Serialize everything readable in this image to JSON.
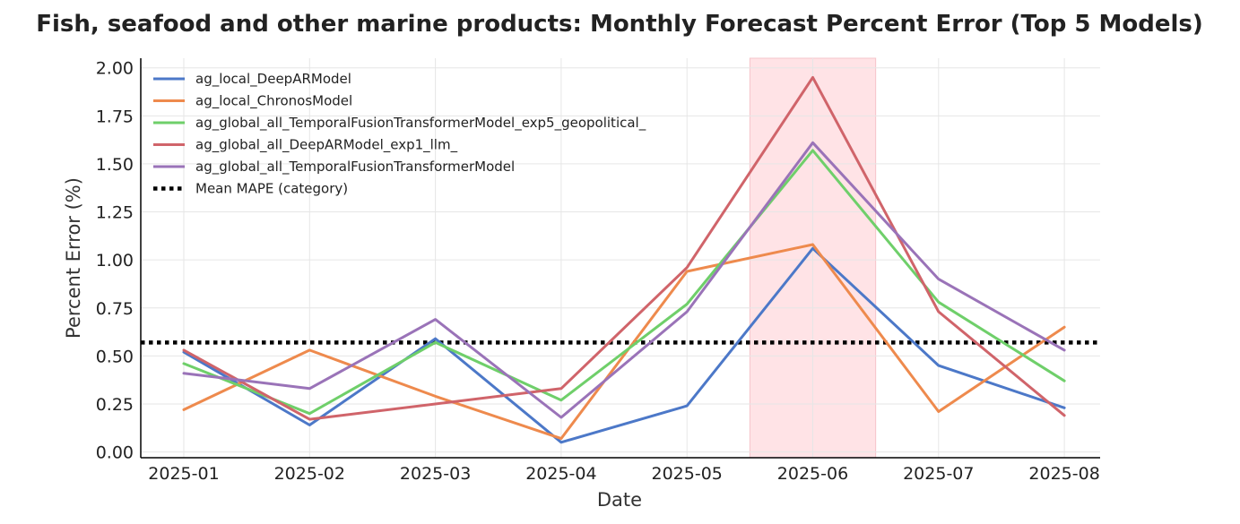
{
  "chart_data": {
    "type": "line",
    "title": "Fish, seafood and other marine products: Monthly Forecast Percent Error (Top 5 Models)",
    "xlabel": "Date",
    "ylabel": "Percent Error (%)",
    "categories": [
      "2025-01",
      "2025-02",
      "2025-03",
      "2025-04",
      "2025-05",
      "2025-06",
      "2025-07",
      "2025-08"
    ],
    "ylim": [
      -0.03,
      2.05
    ],
    "yticks": [
      "0.00",
      "0.25",
      "0.50",
      "0.75",
      "1.00",
      "1.25",
      "1.50",
      "1.75",
      "2.00"
    ],
    "grid": true,
    "legend_position": "top-left",
    "highlight": {
      "from": "2025-06",
      "color": "#ffe3e6"
    },
    "series": [
      {
        "name": "ag_local_DeepARModel",
        "color": "#4c78c8",
        "values": [
          0.52,
          0.14,
          0.59,
          0.05,
          0.24,
          1.06,
          0.45,
          0.23
        ]
      },
      {
        "name": "ag_local_ChronosModel",
        "color": "#ee8a4d",
        "values": [
          0.22,
          0.53,
          0.29,
          0.07,
          0.94,
          1.08,
          0.21,
          0.65
        ]
      },
      {
        "name": "ag_global_all_TemporalFusionTransformerModel_exp5_geopolitical_",
        "color": "#6fcf6a",
        "values": [
          0.46,
          0.2,
          0.57,
          0.27,
          0.77,
          1.57,
          0.78,
          0.37
        ]
      },
      {
        "name": "ag_global_all_DeepARModel_exp1_llm_",
        "color": "#d0646a",
        "values": [
          0.53,
          0.17,
          null,
          0.33,
          0.96,
          1.95,
          0.73,
          0.19
        ]
      },
      {
        "name": "ag_global_all_TemporalFusionTransformerModel",
        "color": "#9a73b8",
        "values": [
          0.41,
          0.33,
          0.69,
          0.18,
          0.73,
          1.61,
          0.9,
          0.53
        ]
      }
    ],
    "reference_line": {
      "name": "Mean MAPE (category)",
      "value": 0.57,
      "color": "#000000"
    }
  }
}
